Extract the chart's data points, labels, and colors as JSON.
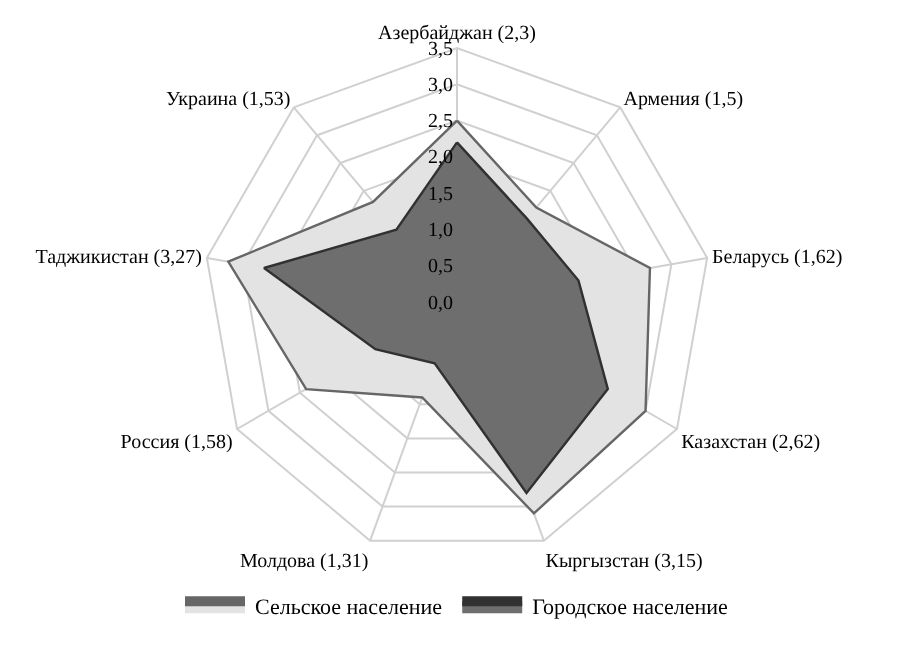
{
  "chart_data": {
    "type": "radar",
    "categories": [
      "Азербайджан (2,3)",
      "Армения (1,5)",
      "Беларусь (1,62)",
      "Казахстан (2,62)",
      "Кыргызстан (3,15)",
      "Молдова (1,31)",
      "Россия (1,58)",
      "Таджикистан (3,27)",
      "Украина (1,53)"
    ],
    "series": [
      {
        "name": "Сельское население",
        "color": "#e3e3e3",
        "values": [
          2.5,
          1.7,
          2.7,
          3.0,
          3.1,
          1.4,
          2.4,
          3.2,
          1.8
        ]
      },
      {
        "name": "Городское население",
        "color": "#6e6e6e",
        "values": [
          2.2,
          1.5,
          1.7,
          2.4,
          2.8,
          0.9,
          1.3,
          2.7,
          1.3
        ]
      }
    ],
    "ylim": [
      0,
      3.5
    ],
    "yticks": [
      {
        "value": 0,
        "label": "0,0"
      },
      {
        "value": 0.5,
        "label": "0,5"
      },
      {
        "value": 1,
        "label": "1,0"
      },
      {
        "value": 1.5,
        "label": "1,5"
      },
      {
        "value": 2,
        "label": "2,0"
      },
      {
        "value": 2.5,
        "label": "2,5"
      },
      {
        "value": 3,
        "label": "3,0"
      },
      {
        "value": 3.5,
        "label": "3,5"
      }
    ],
    "grid": true,
    "legend": "bottom",
    "marker": "none",
    "line_style": "solid"
  }
}
